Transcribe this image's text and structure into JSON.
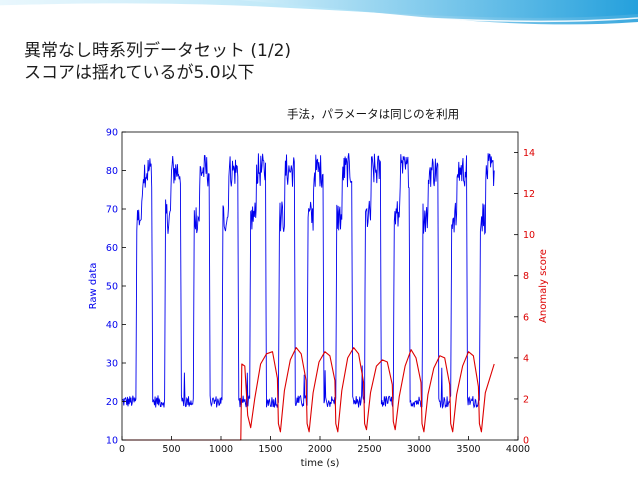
{
  "slide": {
    "title_line1": "異常なし時系列データセット (1/2)",
    "title_line2": "スコアは揺れているが5.0以下",
    "note": "手法，パラメータは同じのを利用"
  },
  "colors": {
    "banner_dark": "#1a9ad9",
    "banner_light": "#9fdcf3",
    "raw_series": "#0000ee",
    "score_series": "#dd0000"
  },
  "chart_data": {
    "type": "line",
    "title": "",
    "xlabel": "time (s)",
    "ylabel": "Raw data",
    "ylabel_right": "Anomaly score",
    "xlim": [
      0,
      4000
    ],
    "ylim": [
      10,
      90
    ],
    "ylim_right": [
      0,
      15
    ],
    "x_ticks": [
      "0",
      "500",
      "1000",
      "1500",
      "2000",
      "2500",
      "3000",
      "3500",
      "4000"
    ],
    "y_ticks": [
      "10",
      "20",
      "30",
      "40",
      "50",
      "60",
      "70",
      "80",
      "90"
    ],
    "y_ticks_right": [
      "0",
      "2",
      "4",
      "6",
      "8",
      "10",
      "12",
      "14"
    ],
    "grid": false,
    "series": [
      {
        "axis": "left",
        "note": "noisy square wave, ~13 cycles",
        "x": [
          0,
          140,
          150,
          200,
          210,
          300,
          310,
          430,
          440,
          490,
          500,
          590,
          600,
          720,
          730,
          780,
          790,
          880,
          890,
          1010,
          1020,
          1070,
          1080,
          1170,
          1180,
          1290,
          1300,
          1350,
          1360,
          1450,
          1460,
          1580,
          1590,
          1640,
          1650,
          1740,
          1750,
          1870,
          1880,
          1930,
          1940,
          2030,
          2040,
          2160,
          2170,
          2220,
          2230,
          2320,
          2330,
          2450,
          2460,
          2510,
          2520,
          2610,
          2620,
          2740,
          2750,
          2800,
          2810,
          2900,
          2910,
          3030,
          3040,
          3090,
          3100,
          3190,
          3200,
          3320,
          3330,
          3380,
          3390,
          3480,
          3490,
          3610,
          3620,
          3670,
          3680,
          3760
        ],
        "values": [
          20,
          20,
          68,
          68,
          80,
          80,
          20,
          20,
          68,
          68,
          80,
          80,
          20,
          20,
          68,
          68,
          80,
          80,
          20,
          20,
          68,
          68,
          80,
          80,
          20,
          20,
          68,
          68,
          80,
          80,
          20,
          20,
          68,
          68,
          80,
          80,
          20,
          20,
          68,
          68,
          80,
          80,
          20,
          20,
          68,
          68,
          80,
          80,
          20,
          20,
          68,
          68,
          80,
          80,
          20,
          20,
          68,
          68,
          80,
          80,
          20,
          20,
          68,
          68,
          80,
          80,
          20,
          20,
          68,
          68,
          80,
          80,
          20,
          20,
          68,
          68,
          80,
          80
        ]
      },
      {
        "axis": "right",
        "note": "anomaly score: 0 until ~1200 s, then oscillates, max below 5",
        "x": [
          0,
          1190,
          1200,
          1210,
          1240,
          1270,
          1300,
          1340,
          1400,
          1460,
          1520,
          1570,
          1580,
          1600,
          1640,
          1700,
          1760,
          1810,
          1860,
          1870,
          1890,
          1930,
          1990,
          2050,
          2100,
          2150,
          2160,
          2180,
          2220,
          2280,
          2340,
          2390,
          2440,
          2450,
          2470,
          2510,
          2570,
          2630,
          2680,
          2730,
          2740,
          2760,
          2800,
          2860,
          2920,
          2970,
          3020,
          3030,
          3050,
          3090,
          3150,
          3210,
          3260,
          3310,
          3320,
          3340,
          3380,
          3440,
          3500,
          3550,
          3600,
          3610,
          3630,
          3670,
          3760
        ],
        "values": [
          0,
          0,
          0,
          3.7,
          3.6,
          1.2,
          0.6,
          2.0,
          3.7,
          4.2,
          4.3,
          3.0,
          0.8,
          0.4,
          2.4,
          3.9,
          4.5,
          4.2,
          2.9,
          0.8,
          0.4,
          2.3,
          3.8,
          4.3,
          4.1,
          2.9,
          0.8,
          0.4,
          2.4,
          4.0,
          4.5,
          4.2,
          2.8,
          0.8,
          0.5,
          2.3,
          3.6,
          3.9,
          3.8,
          2.7,
          0.9,
          0.5,
          2.1,
          3.6,
          4.4,
          4.0,
          2.8,
          0.8,
          0.4,
          2.2,
          3.5,
          4.1,
          4.0,
          2.7,
          0.8,
          0.4,
          2.2,
          3.6,
          4.3,
          4.1,
          2.6,
          0.8,
          0.4,
          2.3,
          3.7
        ]
      }
    ]
  }
}
